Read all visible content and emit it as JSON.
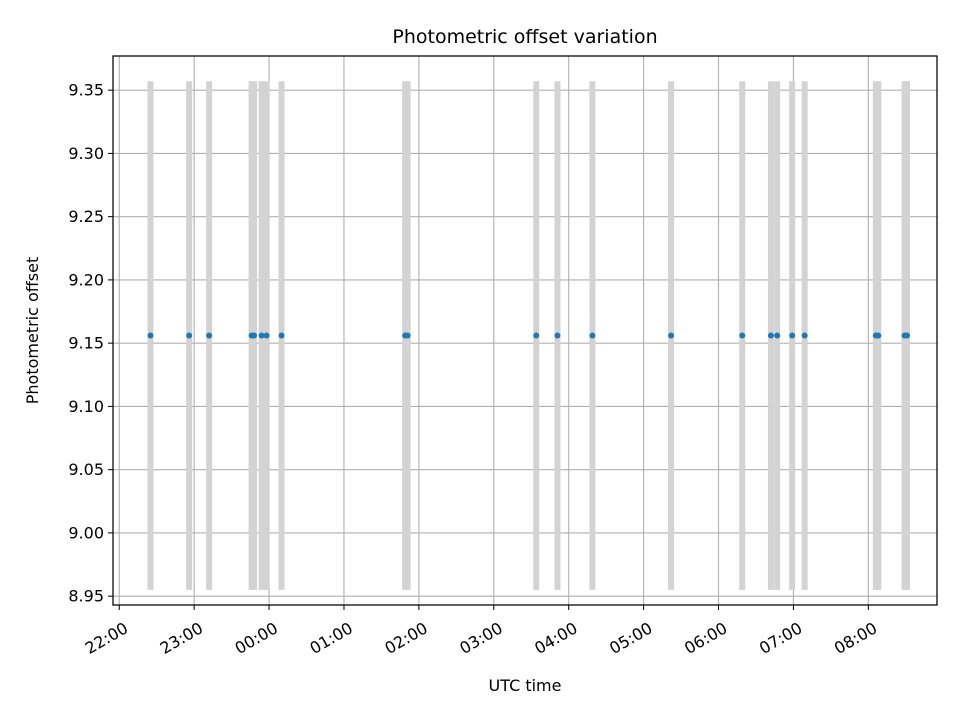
{
  "chart_data": {
    "type": "scatter",
    "title": "Photometric offset variation",
    "xlabel": "UTC time",
    "ylabel": "Photometric offset",
    "x_axis_type": "time",
    "x_start_date": "Day 1",
    "xlim": [
      "21:55",
      "08:55 (+1 day)"
    ],
    "ylim": [
      8.943,
      9.377
    ],
    "xticks": [
      "22:00",
      "23:00",
      "00:00",
      "01:00",
      "02:00",
      "03:00",
      "04:00",
      "05:00",
      "06:00",
      "07:00",
      "08:00"
    ],
    "yticks": [
      "8.95",
      "9.00",
      "9.05",
      "9.10",
      "9.15",
      "9.20",
      "9.25",
      "9.30",
      "9.35"
    ],
    "grid": true,
    "colors": {
      "points": "#1f77b4",
      "errorbars": "#d3d3d3",
      "grid": "#b0b0b0"
    },
    "series": [
      {
        "x": [
          "22:25",
          "22:56",
          "23:12",
          "23:46",
          "23:48",
          "23:54",
          "23:58",
          "00:10",
          "01:49",
          "01:51",
          "03:34",
          "03:51",
          "04:19",
          "05:22",
          "06:19",
          "06:42",
          "06:47",
          "06:59",
          "07:09",
          "08:06",
          "08:08",
          "08:29",
          "08:31"
        ],
        "y": [
          9.156,
          9.156,
          9.156,
          9.156,
          9.156,
          9.156,
          9.156,
          9.156,
          9.156,
          9.156,
          9.156,
          9.156,
          9.156,
          9.156,
          9.156,
          9.156,
          9.156,
          9.156,
          9.156,
          9.156,
          9.156,
          9.156,
          9.156
        ],
        "yerr_low": [
          8.955,
          8.955,
          8.955,
          8.955,
          8.955,
          8.955,
          8.955,
          8.955,
          8.955,
          8.955,
          8.955,
          8.955,
          8.955,
          8.955,
          8.955,
          8.955,
          8.955,
          8.955,
          8.955,
          8.955,
          8.955,
          8.955,
          8.955
        ],
        "yerr_high": [
          9.357,
          9.357,
          9.357,
          9.357,
          9.357,
          9.357,
          9.357,
          9.357,
          9.357,
          9.357,
          9.357,
          9.357,
          9.357,
          9.357,
          9.357,
          9.357,
          9.357,
          9.357,
          9.357,
          9.357,
          9.357,
          9.357,
          9.357
        ]
      }
    ]
  }
}
